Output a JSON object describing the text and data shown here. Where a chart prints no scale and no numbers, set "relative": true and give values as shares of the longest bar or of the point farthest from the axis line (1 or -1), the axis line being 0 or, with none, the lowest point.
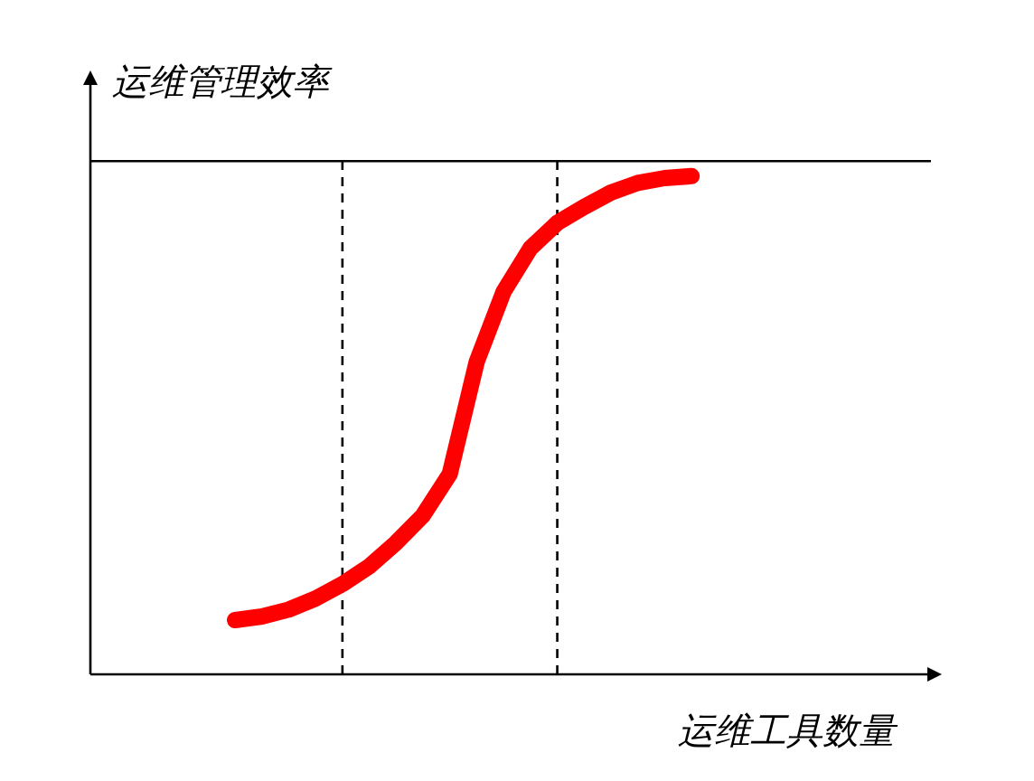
{
  "chart_data": {
    "type": "line",
    "relative": true,
    "xlabel": "运维工具数量",
    "ylabel": "运维管理效率",
    "categories": [
      null,
      null,
      null,
      null,
      null,
      null,
      null,
      null,
      null,
      null,
      null,
      null,
      null,
      null,
      null,
      null,
      null,
      null
    ],
    "series": [
      {
        "color": "#ff0000",
        "values": [
          0.109,
          0.116,
          0.13,
          0.152,
          0.181,
          0.217,
          0.264,
          0.319,
          0.402,
          0.627,
          0.768,
          0.855,
          0.906,
          0.938,
          0.967,
          0.986,
          0.996,
          1.0
        ]
      }
    ],
    "ref_lines": [
      {
        "axis": "y",
        "value": 1.03,
        "line_style": "solid",
        "color": "#000000"
      }
    ]
  }
}
